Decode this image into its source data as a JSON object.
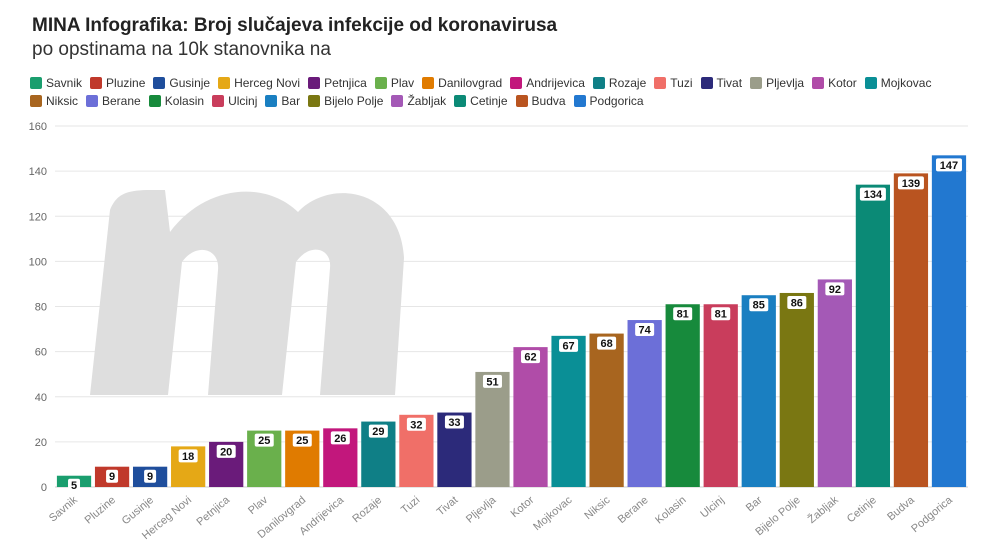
{
  "title": "MINA Infografika: Broj slučajeva infekcije od koronavirusa",
  "subtitle": "po opstinama na 10k stanovnika na",
  "chart_data": {
    "type": "bar",
    "categories": [
      "Savnik",
      "Pluzine",
      "Gusinje",
      "Herceg Novi",
      "Petnjica",
      "Plav",
      "Danilovgrad",
      "Andrijevica",
      "Rozaje",
      "Tuzi",
      "Tivat",
      "Pljevlja",
      "Kotor",
      "Mojkovac",
      "Niksic",
      "Berane",
      "Kolasin",
      "Ulcinj",
      "Bar",
      "Bijelo Polje",
      "Žabljak",
      "Cetinje",
      "Budva",
      "Podgorica"
    ],
    "values": [
      5,
      9,
      9,
      18,
      20,
      25,
      25,
      26,
      29,
      32,
      33,
      51,
      62,
      67,
      68,
      74,
      81,
      81,
      85,
      86,
      92,
      134,
      139,
      147
    ],
    "colors": [
      "#1a9e6e",
      "#c0392b",
      "#1f4e9c",
      "#e5a816",
      "#6a1b7a",
      "#6ab04c",
      "#e07b00",
      "#c2177c",
      "#0f7f86",
      "#f06f68",
      "#2c2a7a",
      "#9b9d8a",
      "#b04ca8",
      "#0a8f96",
      "#a8651f",
      "#6c6fd8",
      "#178a3c",
      "#c93d5c",
      "#1a7fc1",
      "#7a7712",
      "#a459b6",
      "#0b8a76",
      "#b95420",
      "#2278d0"
    ],
    "ylim": [
      0,
      160
    ],
    "yticks": [
      0,
      20,
      40,
      60,
      80,
      100,
      120,
      140,
      160
    ],
    "grid": true,
    "legend": "top",
    "data_labels": true,
    "watermark": "m-logo"
  }
}
